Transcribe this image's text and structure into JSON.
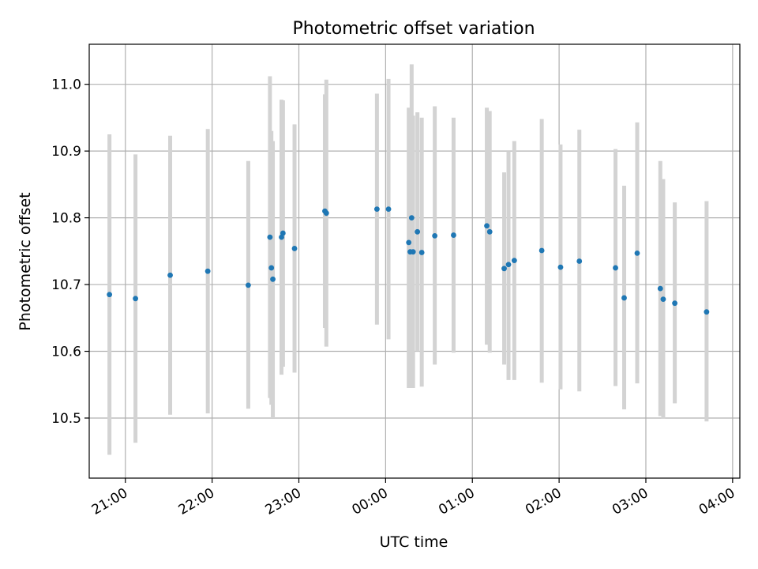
{
  "chart_data": {
    "type": "scatter",
    "title": "Photometric offset variation",
    "xlabel": "UTC time",
    "ylabel": "Photometric offset",
    "x_axis_type": "datetime",
    "xlim": [
      "20:35",
      "04:05"
    ],
    "ylim": [
      10.41,
      11.06
    ],
    "x_ticks": [
      "21:00",
      "22:00",
      "23:00",
      "00:00",
      "01:00",
      "02:00",
      "03:00",
      "04:00"
    ],
    "y_ticks": [
      "10.5",
      "10.6",
      "10.7",
      "10.8",
      "10.9",
      "11.0"
    ],
    "grid": true,
    "marker_color": "#1f77b4",
    "errorbar_color": "#d3d3d3",
    "points": [
      {
        "time": "20:49",
        "y": 10.685,
        "low": 10.445,
        "high": 10.925
      },
      {
        "time": "21:07",
        "y": 10.679,
        "low": 10.463,
        "high": 10.895
      },
      {
        "time": "21:31",
        "y": 10.714,
        "low": 10.505,
        "high": 10.923
      },
      {
        "time": "21:57",
        "y": 10.72,
        "low": 10.507,
        "high": 10.933
      },
      {
        "time": "22:25",
        "y": 10.699,
        "low": 10.514,
        "high": 10.885
      },
      {
        "time": "22:40",
        "y": 10.771,
        "low": 10.53,
        "high": 11.012
      },
      {
        "time": "22:41",
        "y": 10.725,
        "low": 10.52,
        "high": 10.93
      },
      {
        "time": "22:42",
        "y": 10.708,
        "low": 10.5,
        "high": 10.915
      },
      {
        "time": "22:48",
        "y": 10.771,
        "low": 10.565,
        "high": 10.977
      },
      {
        "time": "22:49",
        "y": 10.777,
        "low": 10.577,
        "high": 10.976
      },
      {
        "time": "22:57",
        "y": 10.754,
        "low": 10.568,
        "high": 10.94
      },
      {
        "time": "23:18",
        "y": 10.81,
        "low": 10.635,
        "high": 10.985
      },
      {
        "time": "23:19",
        "y": 10.807,
        "low": 10.607,
        "high": 11.007
      },
      {
        "time": "23:54",
        "y": 10.813,
        "low": 10.64,
        "high": 10.986
      },
      {
        "time": "00:02",
        "y": 10.813,
        "low": 10.618,
        "high": 11.008
      },
      {
        "time": "00:16",
        "y": 10.763,
        "low": 10.545,
        "high": 10.965
      },
      {
        "time": "00:17",
        "y": 10.749,
        "low": 10.545,
        "high": 10.953
      },
      {
        "time": "00:18",
        "y": 10.8,
        "low": 10.545,
        "high": 11.03
      },
      {
        "time": "00:19",
        "y": 10.749,
        "low": 10.545,
        "high": 10.953
      },
      {
        "time": "00:22",
        "y": 10.779,
        "low": 10.6,
        "high": 10.958
      },
      {
        "time": "00:25",
        "y": 10.748,
        "low": 10.547,
        "high": 10.95
      },
      {
        "time": "00:34",
        "y": 10.773,
        "low": 10.58,
        "high": 10.967
      },
      {
        "time": "00:47",
        "y": 10.774,
        "low": 10.598,
        "high": 10.95
      },
      {
        "time": "01:10",
        "y": 10.788,
        "low": 10.61,
        "high": 10.965
      },
      {
        "time": "01:12",
        "y": 10.779,
        "low": 10.598,
        "high": 10.96
      },
      {
        "time": "01:22",
        "y": 10.724,
        "low": 10.58,
        "high": 10.868
      },
      {
        "time": "01:25",
        "y": 10.73,
        "low": 10.557,
        "high": 10.9
      },
      {
        "time": "01:29",
        "y": 10.736,
        "low": 10.557,
        "high": 10.915
      },
      {
        "time": "01:48",
        "y": 10.751,
        "low": 10.553,
        "high": 10.948
      },
      {
        "time": "02:01",
        "y": 10.726,
        "low": 10.543,
        "high": 10.91
      },
      {
        "time": "02:14",
        "y": 10.735,
        "low": 10.54,
        "high": 10.932
      },
      {
        "time": "02:39",
        "y": 10.725,
        "low": 10.548,
        "high": 10.903
      },
      {
        "time": "02:45",
        "y": 10.68,
        "low": 10.513,
        "high": 10.848
      },
      {
        "time": "02:54",
        "y": 10.747,
        "low": 10.552,
        "high": 10.943
      },
      {
        "time": "03:10",
        "y": 10.694,
        "low": 10.503,
        "high": 10.885
      },
      {
        "time": "03:12",
        "y": 10.678,
        "low": 10.499,
        "high": 10.858
      },
      {
        "time": "03:20",
        "y": 10.672,
        "low": 10.522,
        "high": 10.823
      },
      {
        "time": "03:42",
        "y": 10.659,
        "low": 10.495,
        "high": 10.825
      }
    ]
  }
}
